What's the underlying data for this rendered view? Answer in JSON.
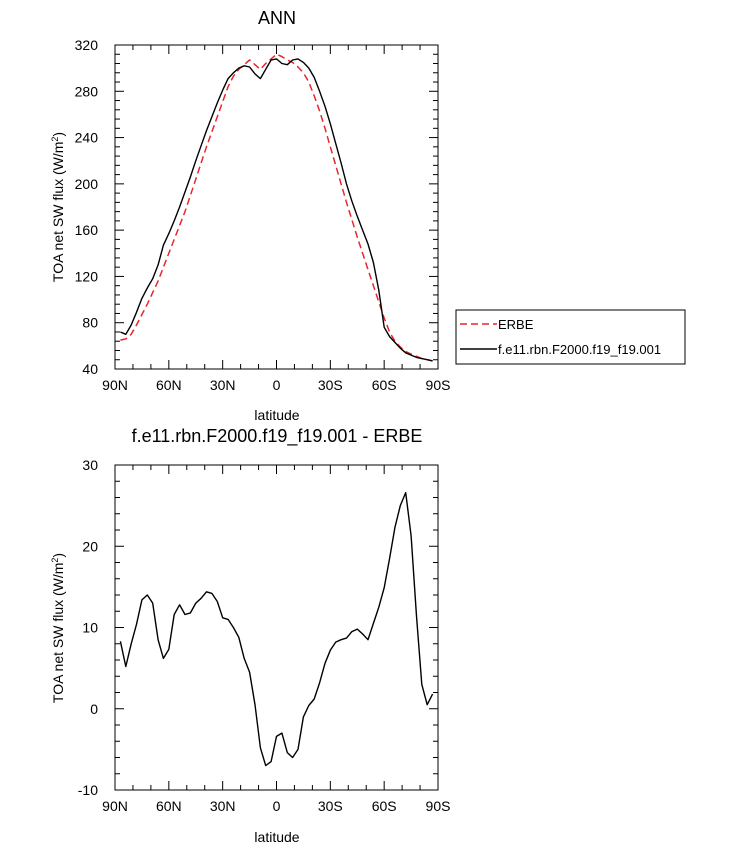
{
  "chart_data": [
    {
      "type": "line",
      "title": "ANN",
      "xlabel": "latitude",
      "ylabel": "TOA net SW flux (W/m",
      "ylabel_sup": "2",
      "ylabel_close": ")",
      "xlim": [
        90,
        -90
      ],
      "ylim": [
        40,
        320
      ],
      "yticks": [
        40,
        80,
        120,
        160,
        200,
        240,
        280,
        320
      ],
      "xticks": [
        90,
        60,
        30,
        0,
        -30,
        -60,
        -90
      ],
      "xtick_labels": [
        "90N",
        "60N",
        "30N",
        "0",
        "30S",
        "60S",
        "90S"
      ],
      "legend_position": "right",
      "series": [
        {
          "name": "ERBE",
          "color": "#e8262b",
          "dash": "dashed",
          "x": [
            87,
            84,
            81,
            78,
            75,
            72,
            69,
            66,
            63,
            60,
            57,
            54,
            51,
            48,
            45,
            42,
            39,
            36,
            33,
            30,
            27,
            24,
            21,
            18,
            15,
            12,
            9,
            6,
            3,
            0,
            -3,
            -6,
            -9,
            -12,
            -15,
            -18,
            -21,
            -24,
            -27,
            -30,
            -33,
            -36,
            -39,
            -42,
            -45,
            -48,
            -51,
            -54,
            -57,
            -60,
            -63,
            -66,
            -69,
            -72,
            -75,
            -78,
            -81,
            -84,
            -87
          ],
          "values": [
            65,
            66,
            70,
            78,
            87,
            96,
            106,
            116,
            128,
            140,
            152,
            164,
            176,
            190,
            204,
            218,
            232,
            245,
            258,
            271,
            284,
            293,
            299,
            303,
            307,
            303,
            299,
            304,
            308,
            312,
            310,
            307,
            305,
            301,
            296,
            288,
            276,
            263,
            248,
            232,
            216,
            200,
            184,
            169,
            154,
            140,
            126,
            112,
            98,
            84,
            72,
            64,
            59,
            55,
            53,
            51,
            49,
            48,
            47
          ]
        },
        {
          "name": "f.e11.rbn.F2000.f19_f19.001",
          "color": "#000000",
          "dash": "solid",
          "x": [
            87,
            84,
            81,
            78,
            75,
            72,
            69,
            66,
            63,
            60,
            57,
            54,
            51,
            48,
            45,
            42,
            39,
            36,
            33,
            30,
            27,
            24,
            21,
            18,
            15,
            12,
            9,
            6,
            3,
            0,
            -3,
            -6,
            -9,
            -12,
            -15,
            -18,
            -21,
            -24,
            -27,
            -30,
            -33,
            -36,
            -39,
            -42,
            -45,
            -48,
            -51,
            -54,
            -57,
            -60,
            -63,
            -66,
            -69,
            -72,
            -75,
            -78,
            -81,
            -84,
            -87
          ],
          "values": [
            72,
            70,
            78,
            89,
            101,
            110,
            118,
            130,
            147,
            157,
            168,
            180,
            193,
            206,
            220,
            233,
            246,
            258,
            270,
            281,
            291,
            296,
            300,
            302,
            301,
            295,
            291,
            299,
            307,
            308,
            304,
            303,
            307,
            308,
            305,
            300,
            292,
            280,
            267,
            252,
            235,
            218,
            200,
            185,
            172,
            160,
            148,
            132,
            108,
            76,
            68,
            63,
            58,
            54,
            52,
            50,
            49,
            48,
            47
          ]
        }
      ]
    },
    {
      "type": "line",
      "title": "f.e11.rbn.F2000.f19_f19.001 - ERBE",
      "xlabel": "latitude",
      "ylabel": "TOA net SW flux (W/m",
      "ylabel_sup": "2",
      "ylabel_close": ")",
      "xlim": [
        90,
        -90
      ],
      "ylim": [
        -10,
        30
      ],
      "yticks": [
        -10,
        0,
        10,
        20,
        30
      ],
      "xticks": [
        90,
        60,
        30,
        0,
        -30,
        -60,
        -90
      ],
      "xtick_labels": [
        "90N",
        "60N",
        "30N",
        "0",
        "30S",
        "60S",
        "90S"
      ],
      "series": [
        {
          "color": "#000000",
          "x": [
            87,
            84,
            81,
            78,
            75,
            72,
            69,
            66,
            63,
            60,
            57,
            54,
            51,
            48,
            45,
            42,
            39,
            36,
            33,
            30,
            27,
            24,
            21,
            18,
            15,
            12,
            9,
            6,
            3,
            0,
            -3,
            -6,
            -9,
            -12,
            -15,
            -18,
            -21,
            -24,
            -27,
            -30,
            -33,
            -36,
            -39,
            -42,
            -45,
            -48,
            -51,
            -54,
            -57,
            -60,
            -63,
            -66,
            -69,
            -72,
            -75,
            -78,
            -81,
            -84,
            -87
          ],
          "values": [
            8.3,
            5.2,
            8.0,
            10.4,
            13.4,
            14.0,
            13.0,
            8.5,
            6.2,
            7.3,
            11.6,
            12.8,
            11.6,
            11.8,
            13.0,
            13.6,
            14.4,
            14.2,
            13.2,
            11.2,
            11.0,
            10.0,
            8.8,
            6.2,
            4.5,
            0.5,
            -4.8,
            -7.0,
            -6.5,
            -3.4,
            -3.0,
            -5.4,
            -6.0,
            -5.0,
            -1.0,
            0.4,
            1.2,
            3.2,
            5.6,
            7.2,
            8.2,
            8.5,
            8.7,
            9.5,
            9.8,
            9.2,
            8.5,
            10.5,
            12.5,
            14.9,
            18.5,
            22.3,
            25.0,
            26.6,
            21.3,
            11.4,
            3.0,
            0.5,
            1.8
          ]
        }
      ]
    }
  ]
}
